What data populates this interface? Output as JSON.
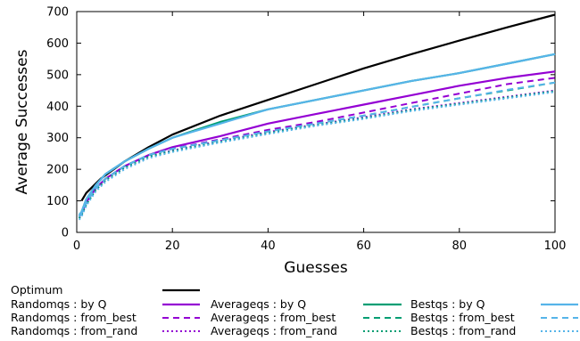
{
  "chart_data": {
    "type": "line",
    "title": "",
    "xlabel": "Guesses",
    "ylabel": "Average Successes",
    "xlim": [
      0,
      100
    ],
    "ylim": [
      0,
      700
    ],
    "xticks": [
      "0",
      "20",
      "40",
      "60",
      "80",
      "100"
    ],
    "yticks": [
      "0",
      "100",
      "200",
      "300",
      "400",
      "500",
      "600",
      "700"
    ],
    "grid": false,
    "legend_position": "bottom",
    "series": [
      {
        "name": "Optimum",
        "color": "#000000",
        "dash": "solid",
        "points": [
          [
            1,
            100
          ],
          [
            2,
            125
          ],
          [
            5,
            170
          ],
          [
            10,
            225
          ],
          [
            15,
            270
          ],
          [
            20,
            310
          ],
          [
            30,
            370
          ],
          [
            40,
            420
          ],
          [
            50,
            470
          ],
          [
            60,
            520
          ],
          [
            70,
            565
          ],
          [
            80,
            608
          ],
          [
            90,
            650
          ],
          [
            100,
            690
          ]
        ]
      },
      {
        "name": "Randomqs : by Q",
        "color": "#9400d3",
        "dash": "solid",
        "points": [
          [
            0.5,
            50
          ],
          [
            1,
            60
          ],
          [
            2,
            95
          ],
          [
            4,
            140
          ],
          [
            6,
            170
          ],
          [
            10,
            210
          ],
          [
            15,
            245
          ],
          [
            20,
            270
          ],
          [
            30,
            305
          ],
          [
            40,
            345
          ],
          [
            50,
            375
          ],
          [
            60,
            405
          ],
          [
            70,
            435
          ],
          [
            80,
            465
          ],
          [
            90,
            490
          ],
          [
            100,
            510
          ]
        ]
      },
      {
        "name": "Randomqs : from_best",
        "color": "#9400d3",
        "dash": "dash",
        "points": [
          [
            0.5,
            50
          ],
          [
            1,
            60
          ],
          [
            2,
            95
          ],
          [
            4,
            140
          ],
          [
            6,
            170
          ],
          [
            10,
            210
          ],
          [
            15,
            245
          ],
          [
            20,
            265
          ],
          [
            30,
            295
          ],
          [
            40,
            325
          ],
          [
            50,
            350
          ],
          [
            60,
            380
          ],
          [
            70,
            410
          ],
          [
            80,
            440
          ],
          [
            90,
            470
          ],
          [
            100,
            490
          ]
        ]
      },
      {
        "name": "Randomqs : from_rand",
        "color": "#9400d3",
        "dash": "dot",
        "points": [
          [
            0.5,
            45
          ],
          [
            1,
            55
          ],
          [
            2,
            90
          ],
          [
            4,
            135
          ],
          [
            6,
            165
          ],
          [
            10,
            205
          ],
          [
            15,
            240
          ],
          [
            20,
            260
          ],
          [
            30,
            290
          ],
          [
            40,
            318
          ],
          [
            50,
            342
          ],
          [
            60,
            365
          ],
          [
            70,
            390
          ],
          [
            80,
            410
          ],
          [
            90,
            430
          ],
          [
            100,
            450
          ]
        ]
      },
      {
        "name": "Averageqs : by Q",
        "color": "#009e73",
        "dash": "solid",
        "points": [
          [
            0.5,
            55
          ],
          [
            1,
            65
          ],
          [
            2,
            105
          ],
          [
            4,
            150
          ],
          [
            6,
            185
          ],
          [
            10,
            225
          ],
          [
            15,
            265
          ],
          [
            20,
            300
          ],
          [
            30,
            350
          ],
          [
            40,
            390
          ],
          [
            50,
            420
          ],
          [
            60,
            450
          ],
          [
            70,
            480
          ],
          [
            80,
            505
          ],
          [
            90,
            535
          ],
          [
            100,
            565
          ]
        ]
      },
      {
        "name": "Averageqs : from_best",
        "color": "#009e73",
        "dash": "dash",
        "points": [
          [
            0.5,
            50
          ],
          [
            1,
            60
          ],
          [
            2,
            95
          ],
          [
            4,
            140
          ],
          [
            6,
            170
          ],
          [
            10,
            210
          ],
          [
            15,
            245
          ],
          [
            20,
            265
          ],
          [
            30,
            292
          ],
          [
            40,
            320
          ],
          [
            50,
            345
          ],
          [
            60,
            370
          ],
          [
            70,
            398
          ],
          [
            80,
            425
          ],
          [
            90,
            450
          ],
          [
            100,
            475
          ]
        ]
      },
      {
        "name": "Averageqs : from_rand",
        "color": "#009e73",
        "dash": "dot",
        "points": [
          [
            0.5,
            45
          ],
          [
            1,
            55
          ],
          [
            2,
            88
          ],
          [
            4,
            135
          ],
          [
            6,
            165
          ],
          [
            10,
            205
          ],
          [
            15,
            240
          ],
          [
            20,
            258
          ],
          [
            30,
            287
          ],
          [
            40,
            315
          ],
          [
            50,
            340
          ],
          [
            60,
            362
          ],
          [
            70,
            388
          ],
          [
            80,
            408
          ],
          [
            90,
            428
          ],
          [
            100,
            448
          ]
        ]
      },
      {
        "name": "Bestqs : by Q",
        "color": "#56b4e9",
        "dash": "solid",
        "points": [
          [
            0.5,
            55
          ],
          [
            1,
            65
          ],
          [
            2,
            105
          ],
          [
            4,
            150
          ],
          [
            6,
            185
          ],
          [
            10,
            225
          ],
          [
            15,
            265
          ],
          [
            20,
            300
          ],
          [
            30,
            345
          ],
          [
            40,
            390
          ],
          [
            50,
            420
          ],
          [
            60,
            450
          ],
          [
            70,
            480
          ],
          [
            80,
            505
          ],
          [
            90,
            535
          ],
          [
            100,
            565
          ]
        ]
      },
      {
        "name": "Bestqs : from_best",
        "color": "#56b4e9",
        "dash": "dash",
        "points": [
          [
            0.5,
            50
          ],
          [
            1,
            60
          ],
          [
            2,
            95
          ],
          [
            4,
            140
          ],
          [
            6,
            170
          ],
          [
            10,
            210
          ],
          [
            15,
            245
          ],
          [
            20,
            265
          ],
          [
            30,
            292
          ],
          [
            40,
            320
          ],
          [
            50,
            345
          ],
          [
            60,
            370
          ],
          [
            70,
            398
          ],
          [
            80,
            425
          ],
          [
            90,
            452
          ],
          [
            100,
            475
          ]
        ]
      },
      {
        "name": "Bestqs : from_rand",
        "color": "#56b4e9",
        "dash": "dot",
        "points": [
          [
            0.5,
            40
          ],
          [
            1,
            50
          ],
          [
            2,
            85
          ],
          [
            4,
            130
          ],
          [
            6,
            160
          ],
          [
            10,
            200
          ],
          [
            15,
            235
          ],
          [
            20,
            255
          ],
          [
            30,
            285
          ],
          [
            40,
            312
          ],
          [
            50,
            338
          ],
          [
            60,
            360
          ],
          [
            70,
            385
          ],
          [
            80,
            405
          ],
          [
            90,
            425
          ],
          [
            100,
            445
          ]
        ]
      }
    ]
  }
}
